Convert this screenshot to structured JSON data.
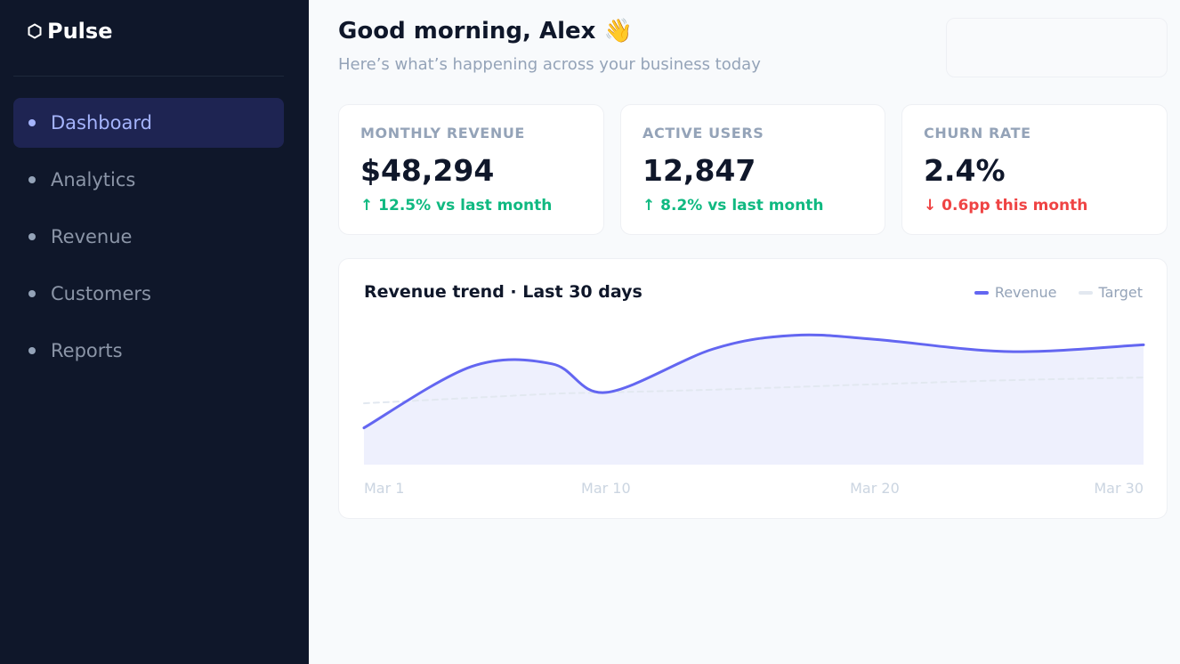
{
  "brand": {
    "name": "Pulse",
    "icon": "hexagon-icon"
  },
  "sidebar": {
    "items": [
      {
        "label": "Dashboard",
        "active": true
      },
      {
        "label": "Analytics",
        "active": false
      },
      {
        "label": "Revenue",
        "active": false
      },
      {
        "label": "Customers",
        "active": false
      },
      {
        "label": "Reports",
        "active": false
      }
    ]
  },
  "header": {
    "greeting": "Good morning, Alex 👋",
    "subtitle": "Here’s what’s happening across your business today"
  },
  "kpis": [
    {
      "label": "MONTHLY REVENUE",
      "value": "$48,294",
      "delta": "↑ 12.5% vs last month",
      "trend": "up"
    },
    {
      "label": "ACTIVE USERS",
      "value": "12,847",
      "delta": "↑ 8.2% vs last month",
      "trend": "up"
    },
    {
      "label": "CHURN RATE",
      "value": "2.4%",
      "delta": "↓ 0.6pp this month",
      "trend": "down"
    }
  ],
  "chart": {
    "title": "Revenue trend · Last 30 days",
    "legend": [
      {
        "label": "Revenue",
        "color": "#6366f1"
      },
      {
        "label": "Target",
        "color": "#e2e8f0"
      }
    ]
  },
  "colors": {
    "sidebar_bg": "#0f172a",
    "accent": "#6366f1",
    "positive": "#10b981",
    "negative": "#ef4444"
  },
  "chart_data": {
    "type": "line",
    "x": [
      1,
      5,
      8,
      10,
      14,
      17,
      20,
      25,
      30
    ],
    "tick_labels": [
      {
        "x": 1,
        "label": "Mar 1"
      },
      {
        "x": 10,
        "label": "Mar 10"
      },
      {
        "x": 20,
        "label": "Mar 20"
      },
      {
        "x": 30,
        "label": "Mar 30"
      }
    ],
    "series": [
      {
        "name": "Revenue",
        "values": [
          27,
          72,
          74,
          53,
          85,
          95,
          92,
          83,
          88
        ],
        "fill": true
      },
      {
        "name": "Target",
        "values": [
          45,
          49,
          52,
          53,
          55,
          57,
          59,
          62,
          64
        ],
        "dashed": true
      }
    ],
    "ylim": [
      0,
      100
    ],
    "grid": false,
    "legend_position": "top-right"
  }
}
